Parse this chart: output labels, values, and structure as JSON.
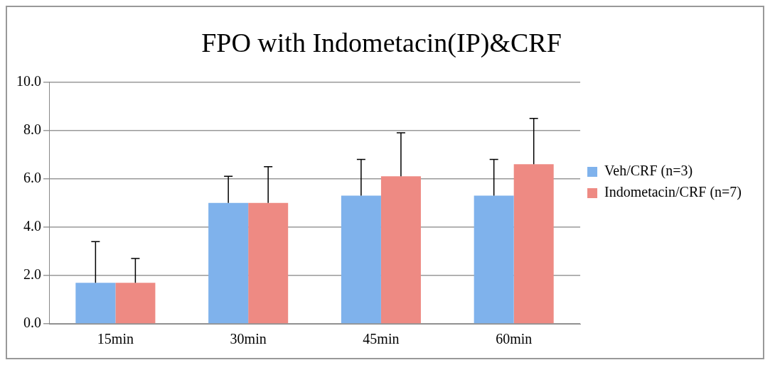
{
  "chart_data": {
    "type": "bar",
    "title": "FPO with Indometacin(IP)&CRF",
    "categories": [
      "15min",
      "30min",
      "45min",
      "60min"
    ],
    "series": [
      {
        "name": "Veh/CRF (n=3)",
        "color": "#7fb2ec",
        "values": [
          1.7,
          5.0,
          5.3,
          5.3
        ],
        "errors": [
          [
            1.7,
            3.4
          ],
          [
            5.0,
            6.1
          ],
          [
            5.3,
            6.8
          ],
          [
            5.3,
            6.8
          ]
        ]
      },
      {
        "name": "Indometacin/CRF (n=7)",
        "color": "#ee8a83",
        "values": [
          1.7,
          5.0,
          6.1,
          6.6
        ],
        "errors": [
          [
            1.7,
            2.7
          ],
          [
            5.0,
            6.5
          ],
          [
            6.1,
            7.9
          ],
          [
            6.6,
            8.5
          ]
        ]
      }
    ],
    "ylim": [
      0,
      10
    ],
    "yticks": [
      {
        "value": 0,
        "label": "0.0"
      },
      {
        "value": 2,
        "label": "2.0"
      },
      {
        "value": 4,
        "label": "4.0"
      },
      {
        "value": 6,
        "label": "6.0"
      },
      {
        "value": 8,
        "label": "8.0"
      },
      {
        "value": 10,
        "label": "10.0"
      }
    ],
    "grid": "y",
    "legend": "right"
  }
}
